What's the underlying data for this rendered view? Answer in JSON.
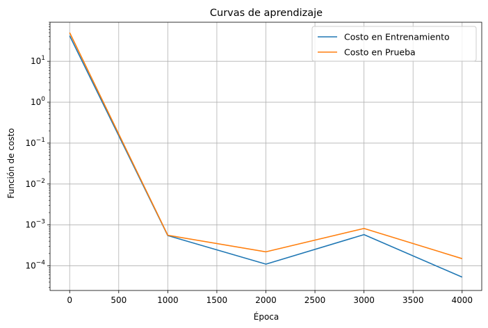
{
  "chart_data": {
    "type": "line",
    "title": "Curvas de aprendizaje",
    "xlabel": "Época",
    "ylabel": "Función de costo",
    "x": [
      0,
      1000,
      2000,
      3000,
      4000
    ],
    "xticks": [
      "0",
      "500",
      "1000",
      "1500",
      "2000",
      "2500",
      "3000",
      "3500",
      "4000"
    ],
    "xtick_values": [
      0,
      500,
      1000,
      1500,
      2000,
      2500,
      3000,
      3500,
      4000
    ],
    "xlim": [
      -200,
      4200
    ],
    "yscale": "log",
    "ylim": [
      2.5e-05,
      90
    ],
    "ytick_values": [
      0.0001,
      0.001,
      0.01,
      0.1,
      1,
      10
    ],
    "ytick_exponents": [
      "−4",
      "−3",
      "−2",
      "−1",
      "0",
      "1"
    ],
    "ytick_base": "10",
    "grid": true,
    "legend_position": "top-right",
    "series": [
      {
        "name": "Costo en Entrenamiento",
        "color": "#1f77b4",
        "values": [
          42,
          0.00055,
          0.00011,
          0.00058,
          5.3e-05
        ]
      },
      {
        "name": "Costo en Prueba",
        "color": "#ff7f0e",
        "values": [
          50,
          0.00056,
          0.00022,
          0.00082,
          0.00015
        ]
      }
    ]
  }
}
